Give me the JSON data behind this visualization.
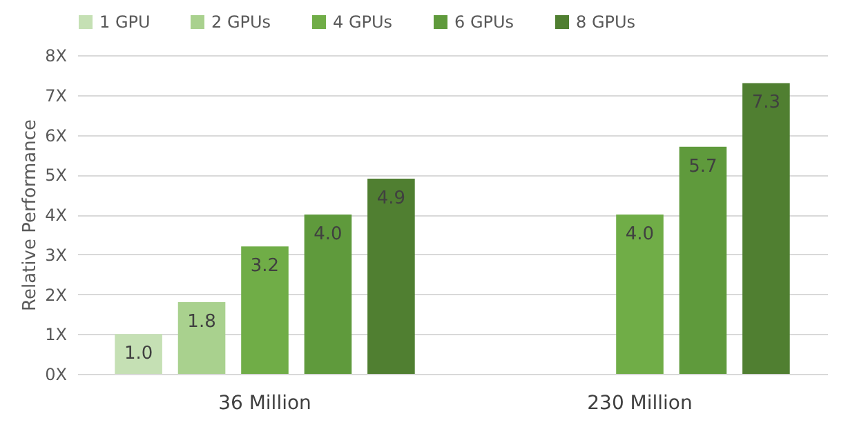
{
  "chart_data": {
    "type": "bar",
    "categories": [
      "36 Million",
      "230 Million"
    ],
    "ylabel": "Relative Performance",
    "series": [
      {
        "name": "1 GPU",
        "color": "#c5e0b4",
        "values": [
          1.0,
          null
        ],
        "value_labels": [
          "1.0",
          null
        ]
      },
      {
        "name": "2 GPUs",
        "color": "#a9d18e",
        "values": [
          1.8,
          null
        ],
        "value_labels": [
          "1.8",
          null
        ]
      },
      {
        "name": "4 GPUs",
        "color": "#70ad47",
        "values": [
          3.2,
          4.0
        ],
        "value_labels": [
          "3.2",
          "4.0"
        ]
      },
      {
        "name": "6 GPUs",
        "color": "#5f9a3c",
        "values": [
          4.0,
          5.7
        ],
        "value_labels": [
          "4.0",
          "5.7"
        ]
      },
      {
        "name": "8 GPUs",
        "color": "#507f31",
        "values": [
          4.9,
          7.3
        ],
        "value_labels": [
          "4.9",
          "7.3"
        ]
      }
    ],
    "ylim": [
      0,
      8
    ],
    "yticks": [
      {
        "value": 0,
        "label": "0X"
      },
      {
        "value": 1,
        "label": "1X"
      },
      {
        "value": 2,
        "label": "2X"
      },
      {
        "value": 3,
        "label": "3X"
      },
      {
        "value": 4,
        "label": "4X"
      },
      {
        "value": 5,
        "label": "5X"
      },
      {
        "value": 6,
        "label": "6X"
      },
      {
        "value": 7,
        "label": "7X"
      },
      {
        "value": 8,
        "label": "8X"
      }
    ],
    "grid": "y",
    "legend": "top"
  }
}
